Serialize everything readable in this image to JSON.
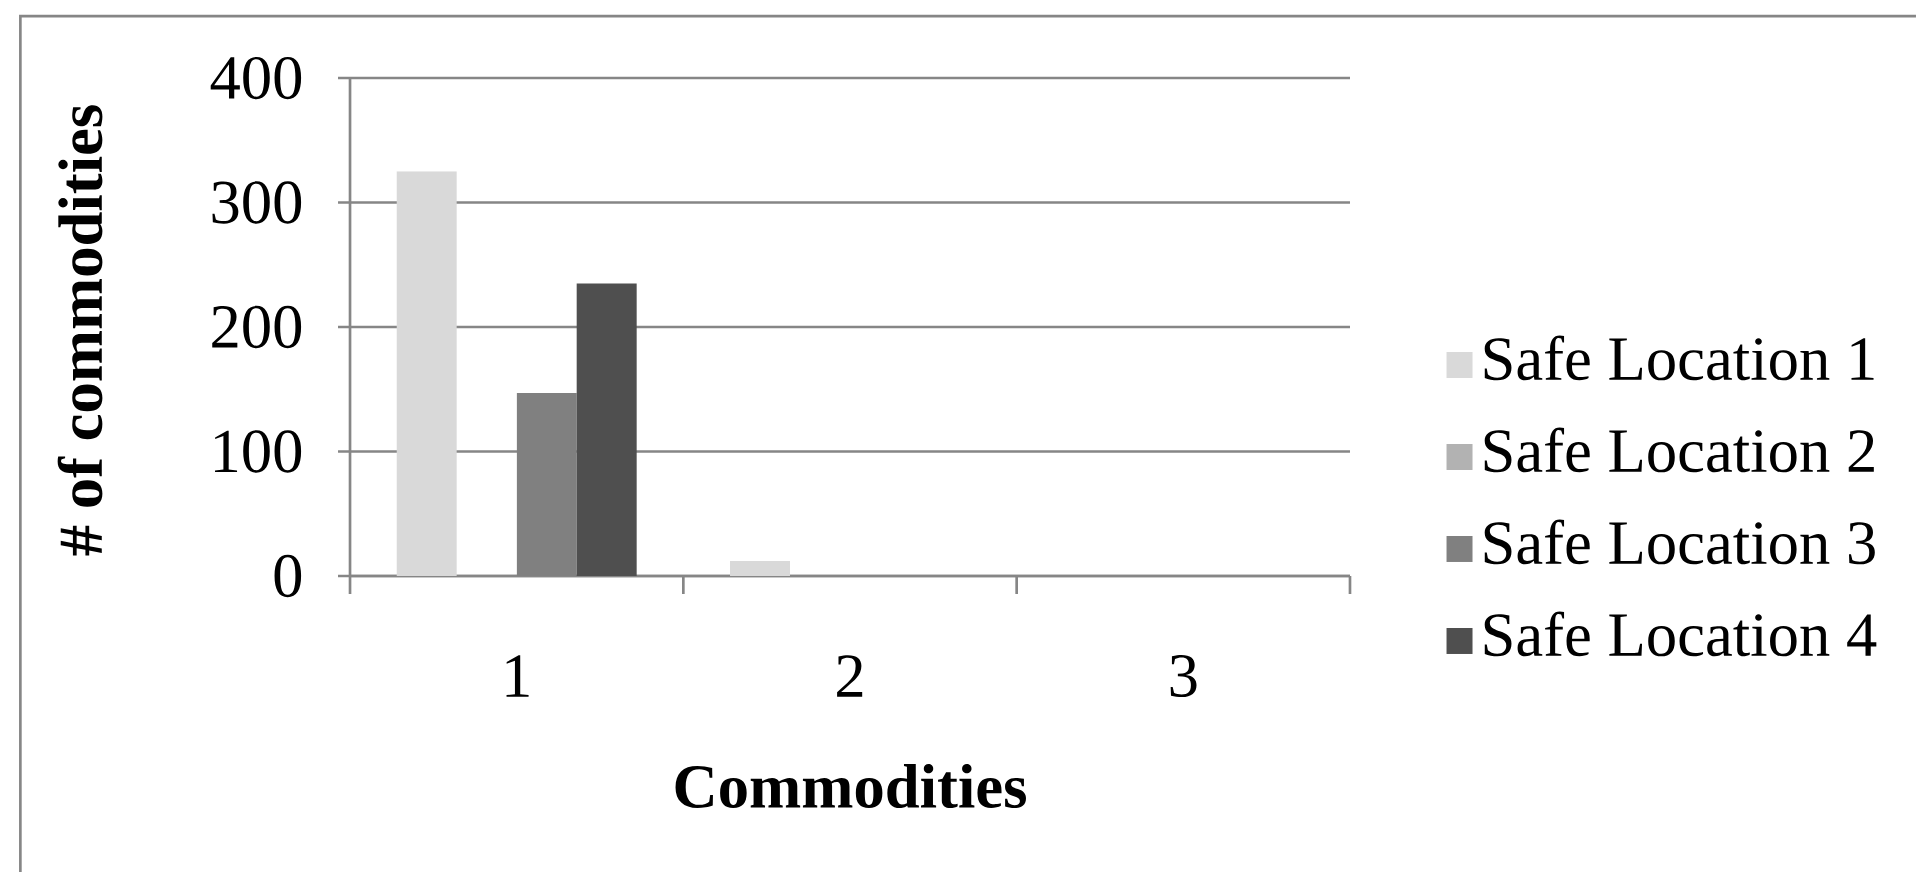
{
  "chart_data": {
    "type": "bar",
    "xlabel": "Commodities",
    "ylabel": "# of commodities",
    "categories": [
      "1",
      "2",
      "3"
    ],
    "series": [
      {
        "name": "Safe Location 1",
        "color": "#d9d9d9",
        "values": [
          325,
          12,
          0
        ]
      },
      {
        "name": "Safe Location 2",
        "color": "#b2b2b2",
        "values": [
          0,
          0,
          0
        ]
      },
      {
        "name": "Safe Location 3",
        "color": "#808080",
        "values": [
          147,
          0,
          0
        ]
      },
      {
        "name": "Safe Location 4",
        "color": "#4f4f4f",
        "values": [
          235,
          0,
          0
        ]
      }
    ],
    "ylim": [
      0,
      400
    ],
    "yticks": [
      0,
      100,
      200,
      300,
      400
    ],
    "grid": "y",
    "legend": "right"
  }
}
